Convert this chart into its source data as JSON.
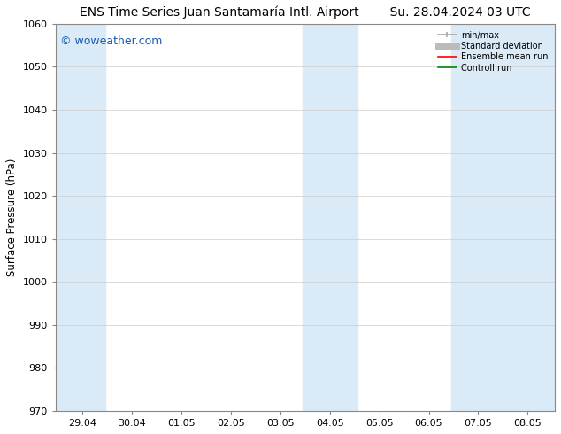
{
  "title": "ENS Time Series Juan Santamaría Intl. Airport        Su. 28.04.2024 03 UTC",
  "ylabel": "Surface Pressure (hPa)",
  "ylim": [
    970,
    1060
  ],
  "yticks": [
    970,
    980,
    990,
    1000,
    1010,
    1020,
    1030,
    1040,
    1050,
    1060
  ],
  "xtick_labels": [
    "29.04",
    "30.04",
    "01.05",
    "02.05",
    "03.05",
    "04.05",
    "05.05",
    "06.05",
    "07.05",
    "08.05"
  ],
  "xtick_positions": [
    0,
    1,
    2,
    3,
    4,
    5,
    6,
    7,
    8,
    9
  ],
  "shaded_ranges": [
    [
      -0.55,
      0.45
    ],
    [
      4.45,
      5.55
    ],
    [
      7.45,
      9.55
    ]
  ],
  "shaded_color": "#daeaf7",
  "watermark_text": "© woweather.com",
  "watermark_color": "#1a5cb0",
  "background_color": "#ffffff",
  "legend_minmax_color": "#aaaaaa",
  "legend_std_color": "#bbbbbb",
  "legend_ens_color": "#ff0000",
  "legend_ctrl_color": "#008800",
  "title_fontsize": 10,
  "tick_fontsize": 8,
  "ylabel_fontsize": 8.5,
  "grid_color": "#cccccc",
  "spine_color": "#888888"
}
